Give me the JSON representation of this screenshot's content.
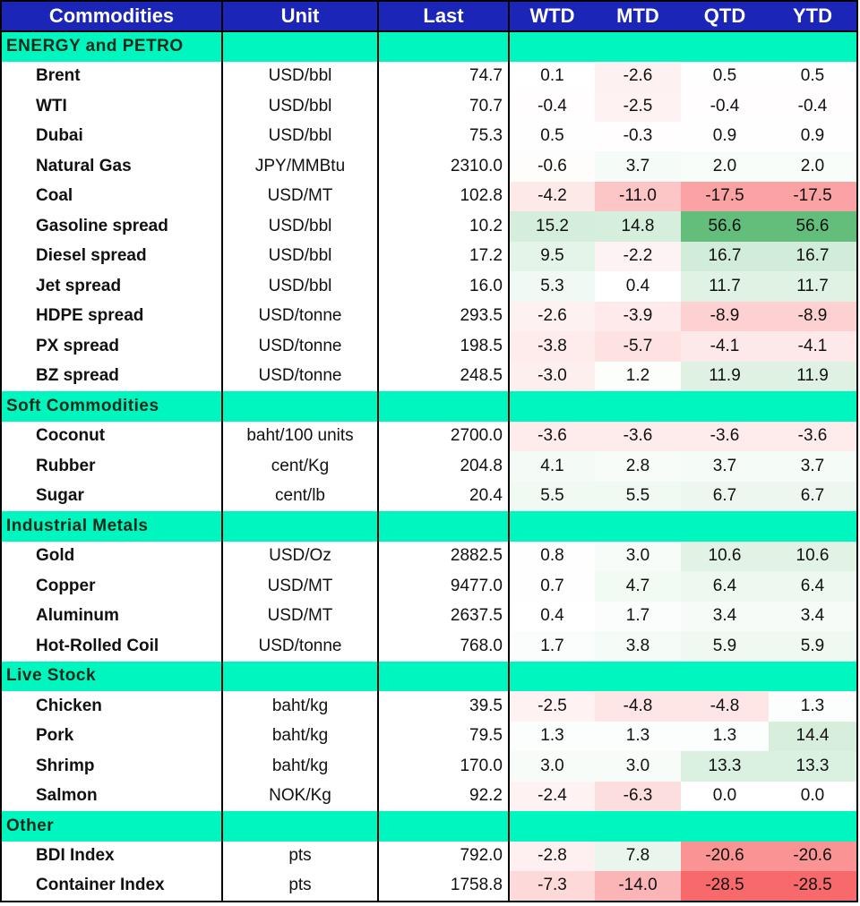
{
  "headers": [
    "Commodities",
    "Unit",
    "Last",
    "WTD",
    "MTD",
    "QTD",
    "YTD"
  ],
  "colors": {
    "header": "#1b25b8",
    "section": "#00f6bf",
    "neg": "#f8696b",
    "pos": "#63be7b"
  },
  "sections": [
    {
      "title": "ENERGY and PETRO",
      "rows": [
        {
          "name": "Brent",
          "unit": "USD/bbl",
          "last": "74.7",
          "vals": [
            "0.1",
            "-2.6",
            "0.5",
            "0.5"
          ]
        },
        {
          "name": "WTI",
          "unit": "USD/bbl",
          "last": "70.7",
          "vals": [
            "-0.4",
            "-2.5",
            "-0.4",
            "-0.4"
          ]
        },
        {
          "name": "Dubai",
          "unit": "USD/bbl",
          "last": "75.3",
          "vals": [
            "0.5",
            "-0.3",
            "0.9",
            "0.9"
          ]
        },
        {
          "name": "Natural Gas",
          "unit": "JPY/MMBtu",
          "last": "2310.0",
          "vals": [
            "-0.6",
            "3.7",
            "2.0",
            "2.0"
          ]
        },
        {
          "name": "Coal",
          "unit": "USD/MT",
          "last": "102.8",
          "vals": [
            "-4.2",
            "-11.0",
            "-17.5",
            "-17.5"
          ]
        },
        {
          "name": "Gasoline spread",
          "unit": "USD/bbl",
          "last": "10.2",
          "vals": [
            "15.2",
            "14.8",
            "56.6",
            "56.6"
          ]
        },
        {
          "name": "Diesel spread",
          "unit": "USD/bbl",
          "last": "17.2",
          "vals": [
            "9.5",
            "-2.2",
            "16.7",
            "16.7"
          ]
        },
        {
          "name": "Jet spread",
          "unit": "USD/bbl",
          "last": "16.0",
          "vals": [
            "5.3",
            "0.4",
            "11.7",
            "11.7"
          ]
        },
        {
          "name": "HDPE spread",
          "unit": "USD/tonne",
          "last": "293.5",
          "vals": [
            "-2.6",
            "-3.9",
            "-8.9",
            "-8.9"
          ]
        },
        {
          "name": "PX spread",
          "unit": "USD/tonne",
          "last": "198.5",
          "vals": [
            "-3.8",
            "-5.7",
            "-4.1",
            "-4.1"
          ]
        },
        {
          "name": "BZ spread",
          "unit": "USD/tonne",
          "last": "248.5",
          "vals": [
            "-3.0",
            "1.2",
            "11.9",
            "11.9"
          ]
        }
      ]
    },
    {
      "title": "Soft Commodities",
      "rows": [
        {
          "name": "Coconut",
          "unit": "baht/100 units",
          "last": "2700.0",
          "vals": [
            "-3.6",
            "-3.6",
            "-3.6",
            "-3.6"
          ]
        },
        {
          "name": "Rubber",
          "unit": "cent/Kg",
          "last": "204.8",
          "vals": [
            "4.1",
            "2.8",
            "3.7",
            "3.7"
          ]
        },
        {
          "name": "Sugar",
          "unit": "cent/lb",
          "last": "20.4",
          "vals": [
            "5.5",
            "5.5",
            "6.7",
            "6.7"
          ]
        }
      ]
    },
    {
      "title": "Industrial Metals",
      "rows": [
        {
          "name": "Gold",
          "unit": "USD/Oz",
          "last": "2882.5",
          "vals": [
            "0.8",
            "3.0",
            "10.6",
            "10.6"
          ]
        },
        {
          "name": "Copper",
          "unit": "USD/MT",
          "last": "9477.0",
          "vals": [
            "0.7",
            "4.7",
            "6.4",
            "6.4"
          ]
        },
        {
          "name": "Aluminum",
          "unit": "USD/MT",
          "last": "2637.5",
          "vals": [
            "0.4",
            "1.7",
            "3.4",
            "3.4"
          ]
        },
        {
          "name": "Hot-Rolled Coil",
          "unit": "USD/tonne",
          "last": "768.0",
          "vals": [
            "1.7",
            "3.8",
            "5.9",
            "5.9"
          ]
        }
      ]
    },
    {
      "title": "Live Stock",
      "rows": [
        {
          "name": "Chicken",
          "unit": "baht/kg",
          "last": "39.5",
          "vals": [
            "-2.5",
            "-4.8",
            "-4.8",
            "1.3"
          ]
        },
        {
          "name": "Pork",
          "unit": "baht/kg",
          "last": "79.5",
          "vals": [
            "1.3",
            "1.3",
            "1.3",
            "14.4"
          ]
        },
        {
          "name": "Shrimp",
          "unit": "baht/kg",
          "last": "170.0",
          "vals": [
            "3.0",
            "3.0",
            "13.3",
            "13.3"
          ]
        },
        {
          "name": "Salmon",
          "unit": "NOK/Kg",
          "last": "92.2",
          "vals": [
            "-2.4",
            "-6.3",
            "0.0",
            "0.0"
          ]
        }
      ]
    },
    {
      "title": "Other",
      "rows": [
        {
          "name": "BDI Index",
          "unit": "pts",
          "last": "792.0",
          "vals": [
            "-2.8",
            "7.8",
            "-20.6",
            "-20.6"
          ]
        },
        {
          "name": "Container Index",
          "unit": "pts",
          "last": "1758.8",
          "vals": [
            "-7.3",
            "-14.0",
            "-28.5",
            "-28.5"
          ]
        }
      ]
    }
  ]
}
